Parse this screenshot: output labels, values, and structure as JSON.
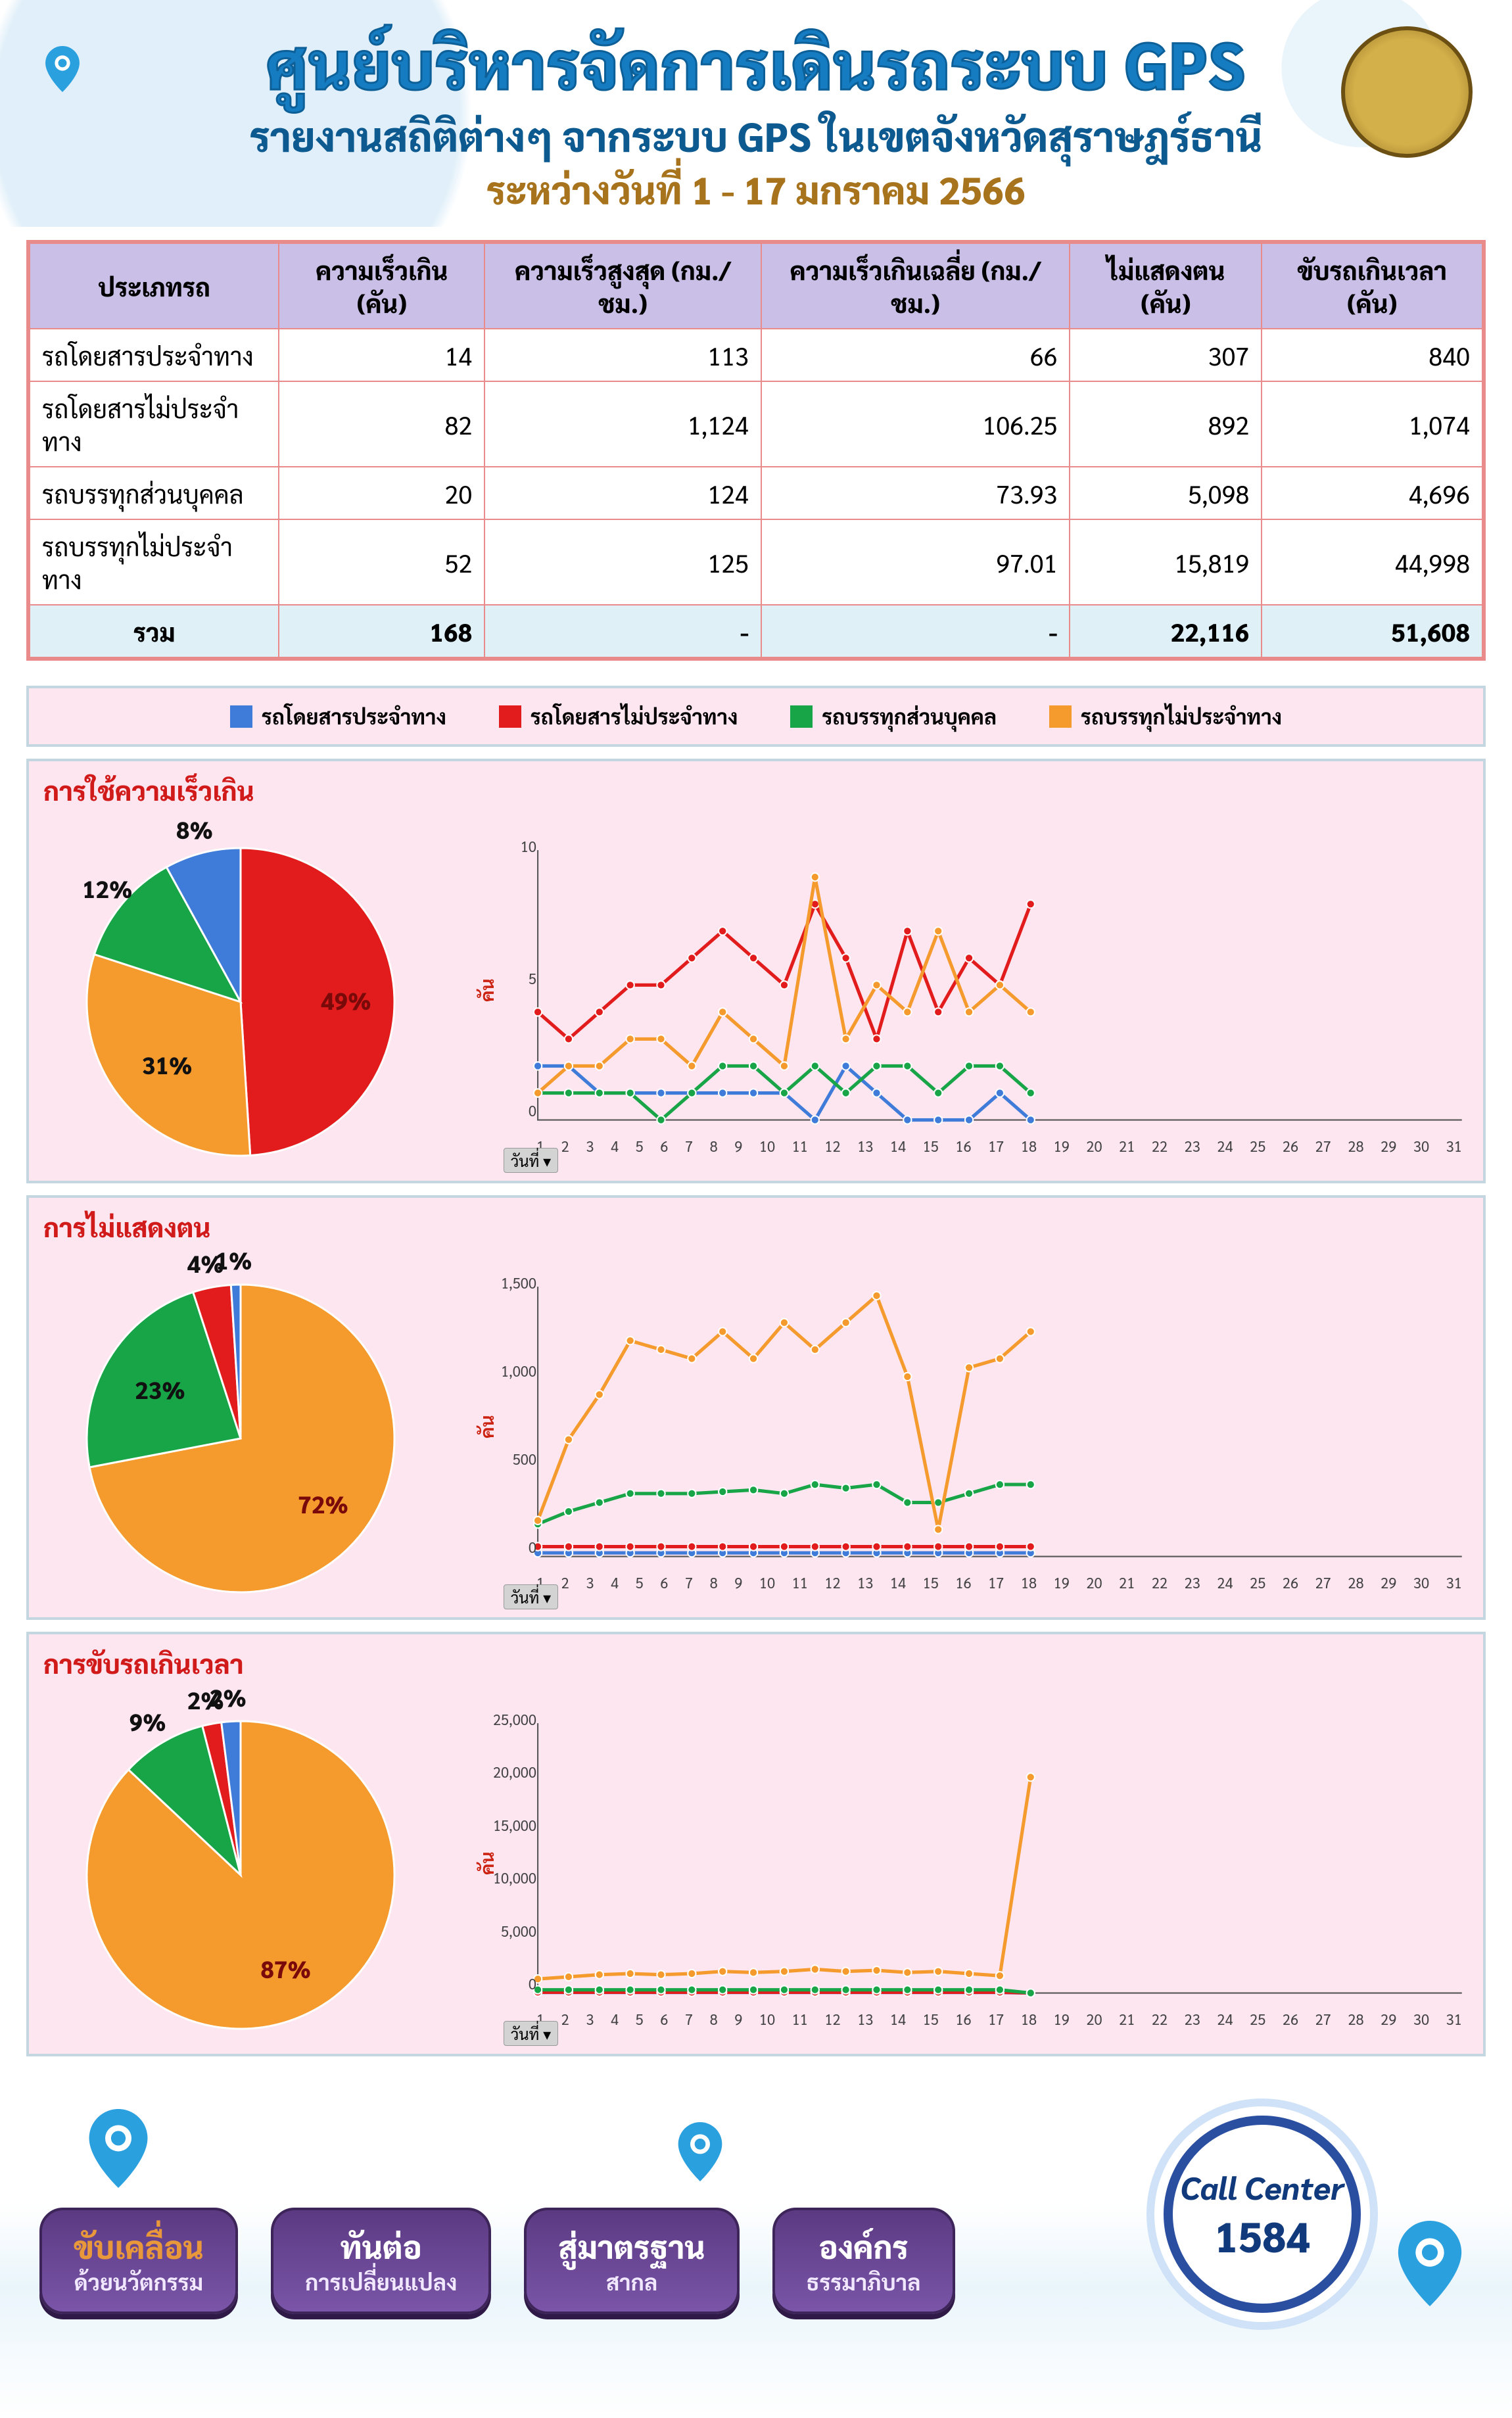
{
  "colors": {
    "series": {
      "bus_fixed": "#3f7bd9",
      "bus_nonfixed": "#e21c1c",
      "truck_personal": "#17a547",
      "truck_nonfixed": "#f59a2d"
    },
    "panel_bg": "#fde6ef",
    "panel_border": "#c4d7e0",
    "table_header_bg": "#cac0e7",
    "table_border": "#e98b8b",
    "total_row_bg": "#dff1f7"
  },
  "header": {
    "title_main": "ศูนย์บริหารจัดการเดินรถระบบ GPS",
    "subtitle1": "รายงานสถิติต่างๆ จากระบบ GPS ในเขตจังหวัดสุราษฎร์ธานี",
    "subtitle2": "ระหว่างวันที่  1 - 17 มกราคม 2566"
  },
  "table": {
    "headers": [
      "ประเภทรถ",
      "ความเร็วเกิน (คัน)",
      "ความเร็วสูงสุด (กม./ชม.)",
      "ความเร็วเกินเฉลี่ย (กม./ชม.)",
      "ไม่แสดงตน (คัน)",
      "ขับรถเกินเวลา (คัน)"
    ],
    "rows": [
      {
        "label": "รถโดยสารประจำทาง",
        "cells": [
          "14",
          "113",
          "66",
          "307",
          "840"
        ]
      },
      {
        "label": "รถโดยสารไม่ประจำทาง",
        "cells": [
          "82",
          "1,124",
          "106.25",
          "892",
          "1,074"
        ]
      },
      {
        "label": "รถบรรทุกส่วนบุคคล",
        "cells": [
          "20",
          "124",
          "73.93",
          "5,098",
          "4,696"
        ]
      },
      {
        "label": "รถบรรทุกไม่ประจำทาง",
        "cells": [
          "52",
          "125",
          "97.01",
          "15,819",
          "44,998"
        ]
      }
    ],
    "total": {
      "label": "รวม",
      "cells": [
        "168",
        "-",
        "-",
        "22,116",
        "51,608"
      ]
    }
  },
  "legend": [
    {
      "key": "bus_fixed",
      "label": "รถโดยสารประจำทาง"
    },
    {
      "key": "bus_nonfixed",
      "label": "รถโดยสารไม่ประจำทาง"
    },
    {
      "key": "truck_personal",
      "label": "รถบรรทุกส่วนบุคคล"
    },
    {
      "key": "truck_nonfixed",
      "label": "รถบรรทุกไม่ประจำทาง"
    }
  ],
  "x_axis": {
    "label_btn": "วันที่ ▾",
    "ticks_1_to_31": [
      "1",
      "2",
      "3",
      "4",
      "5",
      "6",
      "7",
      "8",
      "9",
      "10",
      "11",
      "12",
      "13",
      "14",
      "15",
      "16",
      "17",
      "18",
      "19",
      "20",
      "21",
      "22",
      "23",
      "24",
      "25",
      "26",
      "27",
      "28",
      "29",
      "30",
      "31"
    ]
  },
  "panels": [
    {
      "title": "การใช้ความเร็วเกิน",
      "y_label": "คัน",
      "pie": {
        "slices": [
          {
            "key": "bus_nonfixed",
            "pct": 49,
            "label": "49%"
          },
          {
            "key": "truck_nonfixed",
            "pct": 31,
            "label": "31%"
          },
          {
            "key": "truck_personal",
            "pct": 12,
            "label": "12%"
          },
          {
            "key": "bus_fixed",
            "pct": 8,
            "label": "8%"
          }
        ]
      },
      "y_ticks": [
        "10",
        "5",
        "0"
      ],
      "line": {
        "days": 17,
        "series": {
          "bus_fixed": [
            2,
            2,
            1,
            1,
            1,
            1,
            1,
            1,
            1,
            0,
            2,
            1,
            0,
            0,
            0,
            1,
            0
          ],
          "bus_nonfixed": [
            4,
            3,
            4,
            5,
            5,
            6,
            7,
            6,
            5,
            8,
            6,
            3,
            7,
            4,
            6,
            5,
            8
          ],
          "truck_personal": [
            1,
            1,
            1,
            1,
            0,
            1,
            2,
            2,
            1,
            2,
            1,
            2,
            2,
            1,
            2,
            2,
            1
          ],
          "truck_nonfixed": [
            1,
            2,
            2,
            3,
            3,
            2,
            4,
            3,
            2,
            9,
            3,
            5,
            4,
            7,
            4,
            5,
            4
          ]
        },
        "y_max": 10
      }
    },
    {
      "title": "การไม่แสดงตน",
      "y_label": "คัน",
      "pie": {
        "slices": [
          {
            "key": "truck_nonfixed",
            "pct": 72,
            "label": "72%"
          },
          {
            "key": "truck_personal",
            "pct": 23,
            "label": "23%"
          },
          {
            "key": "bus_nonfixed",
            "pct": 4,
            "label": "4%"
          },
          {
            "key": "bus_fixed",
            "pct": 1,
            "label": "1%"
          }
        ]
      },
      "y_ticks": [
        "1,500",
        "1,000",
        "500",
        "0"
      ],
      "line": {
        "days": 17,
        "series": {
          "bus_fixed": [
            20,
            20,
            20,
            20,
            20,
            20,
            20,
            20,
            20,
            20,
            20,
            20,
            20,
            20,
            20,
            20,
            20
          ],
          "bus_nonfixed": [
            55,
            55,
            55,
            55,
            55,
            55,
            55,
            55,
            55,
            55,
            55,
            55,
            55,
            55,
            55,
            55,
            55
          ],
          "truck_personal": [
            180,
            250,
            300,
            350,
            350,
            350,
            360,
            370,
            350,
            400,
            380,
            400,
            300,
            300,
            350,
            400,
            400
          ],
          "truck_nonfixed": [
            200,
            650,
            900,
            1200,
            1150,
            1100,
            1250,
            1100,
            1300,
            1150,
            1300,
            1450,
            1000,
            150,
            1050,
            1100,
            1250
          ]
        },
        "y_max": 1500
      }
    },
    {
      "title": "การขับรถเกินเวลา",
      "y_label": "คัน",
      "pie": {
        "slices": [
          {
            "key": "truck_nonfixed",
            "pct": 87,
            "label": "87%"
          },
          {
            "key": "truck_personal",
            "pct": 9,
            "label": "9%"
          },
          {
            "key": "bus_nonfixed",
            "pct": 2,
            "label": "2%"
          },
          {
            "key": "bus_fixed",
            "pct": 2,
            "label": "2%"
          }
        ]
      },
      "y_ticks": [
        "25,000",
        "20,000",
        "15,000",
        "10,000",
        "5,000",
        "0"
      ],
      "line": {
        "days": 17,
        "series": {
          "bus_fixed": [
            50,
            50,
            50,
            50,
            50,
            50,
            50,
            50,
            50,
            50,
            50,
            50,
            50,
            50,
            50,
            50,
            0
          ],
          "bus_nonfixed": [
            70,
            70,
            70,
            70,
            70,
            70,
            70,
            70,
            70,
            70,
            70,
            70,
            70,
            70,
            70,
            70,
            0
          ],
          "truck_personal": [
            300,
            300,
            300,
            300,
            300,
            300,
            300,
            300,
            300,
            300,
            300,
            300,
            300,
            300,
            300,
            300,
            0
          ],
          "truck_nonfixed": [
            1300,
            1500,
            1700,
            1800,
            1700,
            1800,
            2000,
            1900,
            2000,
            2200,
            2000,
            2100,
            1900,
            2000,
            1800,
            1600,
            20000
          ]
        },
        "y_max": 25000
      }
    }
  ],
  "footer": {
    "pills": [
      {
        "l1": "ขับเคลื่อน",
        "l2": "ด้วยนวัตกรรม"
      },
      {
        "l1": "ทันต่อ",
        "l2": "การเปลี่ยนแปลง"
      },
      {
        "l1": "สู่มาตรฐาน",
        "l2": "สากล"
      },
      {
        "l1": "องค์กร",
        "l2": "ธรรมาภิบาล"
      }
    ],
    "call_center": {
      "line1": "Call Center",
      "line2": "1584"
    }
  }
}
